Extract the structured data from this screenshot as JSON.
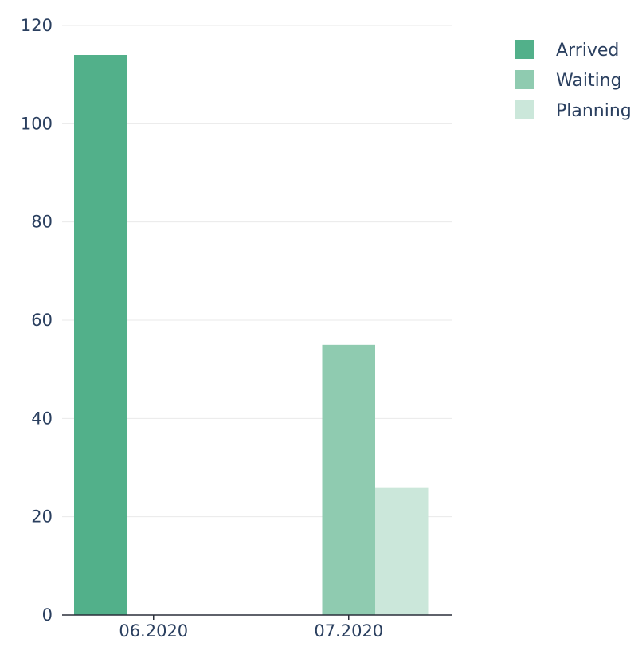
{
  "chart_data": {
    "type": "bar",
    "categories": [
      "06.2020",
      "07.2020"
    ],
    "series": [
      {
        "name": "Arrived",
        "values": [
          114,
          0
        ],
        "color": "#52b08a"
      },
      {
        "name": "Waiting",
        "values": [
          0,
          55
        ],
        "color": "#8fcbb0"
      },
      {
        "name": "Planning",
        "values": [
          0,
          26
        ],
        "color": "#cbe7da"
      }
    ],
    "title": "",
    "xlabel": "",
    "ylabel": "",
    "ylim": [
      0,
      120
    ],
    "yticks": [
      "0",
      "20",
      "40",
      "60",
      "80",
      "100",
      "120"
    ],
    "grid": true,
    "legend_position": "top-right"
  }
}
